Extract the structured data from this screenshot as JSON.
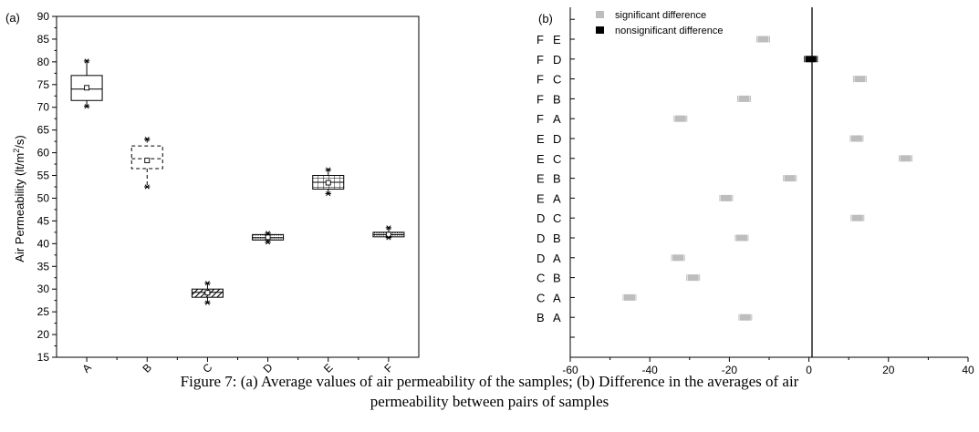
{
  "caption": {
    "line1": "Figure 7: (a) Average values of air permeability of the samples; (b) Difference in the averages of air",
    "line2": "permeability between pairs of samples"
  },
  "chart_data": [
    {
      "type": "box",
      "panel_label": "(a)",
      "ylabel_base": "Air Permeability (lt/m",
      "ylabel_sup": "2",
      "ylabel_tail": "/s)",
      "ylim": [
        15,
        90
      ],
      "yticks": [
        15,
        20,
        25,
        30,
        35,
        40,
        45,
        50,
        55,
        60,
        65,
        70,
        75,
        80,
        85,
        90
      ],
      "categories": [
        "A",
        "B",
        "C",
        "D",
        "E",
        "F"
      ],
      "boxes": [
        {
          "name": "A",
          "q1": 71.5,
          "median": 74,
          "q3": 77,
          "mean": 74.3,
          "min": 70.2,
          "max": 80.2,
          "fill": "none",
          "border": "solid"
        },
        {
          "name": "B",
          "q1": 56.5,
          "median": 58.7,
          "q3": 61.5,
          "mean": 58.3,
          "min": 52.5,
          "max": 63,
          "fill": "none",
          "border": "dashed"
        },
        {
          "name": "C",
          "q1": 28.2,
          "median": 29.3,
          "q3": 30,
          "mean": 29.2,
          "min": 27,
          "max": 31.3,
          "fill": "diagonal",
          "border": "solid"
        },
        {
          "name": "D",
          "q1": 40.8,
          "median": 41.3,
          "q3": 42,
          "mean": 41.4,
          "min": 40.3,
          "max": 42.3,
          "fill": "dots",
          "border": "solid"
        },
        {
          "name": "E",
          "q1": 52,
          "median": 53.5,
          "q3": 55,
          "mean": 53.4,
          "min": 51,
          "max": 56.3,
          "fill": "grid",
          "border": "solid"
        },
        {
          "name": "F",
          "q1": 41.5,
          "median": 42,
          "q3": 42.5,
          "mean": 42,
          "min": 41.3,
          "max": 43.5,
          "fill": "dots",
          "border": "solid"
        }
      ]
    },
    {
      "type": "scatter",
      "panel_label": "(b)",
      "xlim": [
        -60,
        40
      ],
      "xticks": [
        -60,
        -40,
        -20,
        0,
        20,
        40
      ],
      "legend": [
        {
          "label": "significant difference",
          "color": "#bdbdbd"
        },
        {
          "label": "nonsignificant difference",
          "color": "#000000"
        }
      ],
      "pairs": [
        {
          "a": "F",
          "b": "E",
          "value": -11.5,
          "significant": true
        },
        {
          "a": "F",
          "b": "D",
          "value": 0.5,
          "significant": false
        },
        {
          "a": "F",
          "b": "C",
          "value": 12.8,
          "significant": true
        },
        {
          "a": "F",
          "b": "B",
          "value": -16.3,
          "significant": true
        },
        {
          "a": "F",
          "b": "A",
          "value": -32.3,
          "significant": true
        },
        {
          "a": "E",
          "b": "D",
          "value": 12,
          "significant": true
        },
        {
          "a": "E",
          "b": "C",
          "value": 24.3,
          "significant": true
        },
        {
          "a": "E",
          "b": "B",
          "value": -4.8,
          "significant": true
        },
        {
          "a": "E",
          "b": "A",
          "value": -20.8,
          "significant": true
        },
        {
          "a": "D",
          "b": "C",
          "value": 12.2,
          "significant": true
        },
        {
          "a": "D",
          "b": "B",
          "value": -16.9,
          "significant": true
        },
        {
          "a": "D",
          "b": "A",
          "value": -32.9,
          "significant": true
        },
        {
          "a": "C",
          "b": "B",
          "value": -29.1,
          "significant": true
        },
        {
          "a": "C",
          "b": "A",
          "value": -45.1,
          "significant": true
        },
        {
          "a": "B",
          "b": "A",
          "value": -16,
          "significant": true
        }
      ]
    }
  ]
}
